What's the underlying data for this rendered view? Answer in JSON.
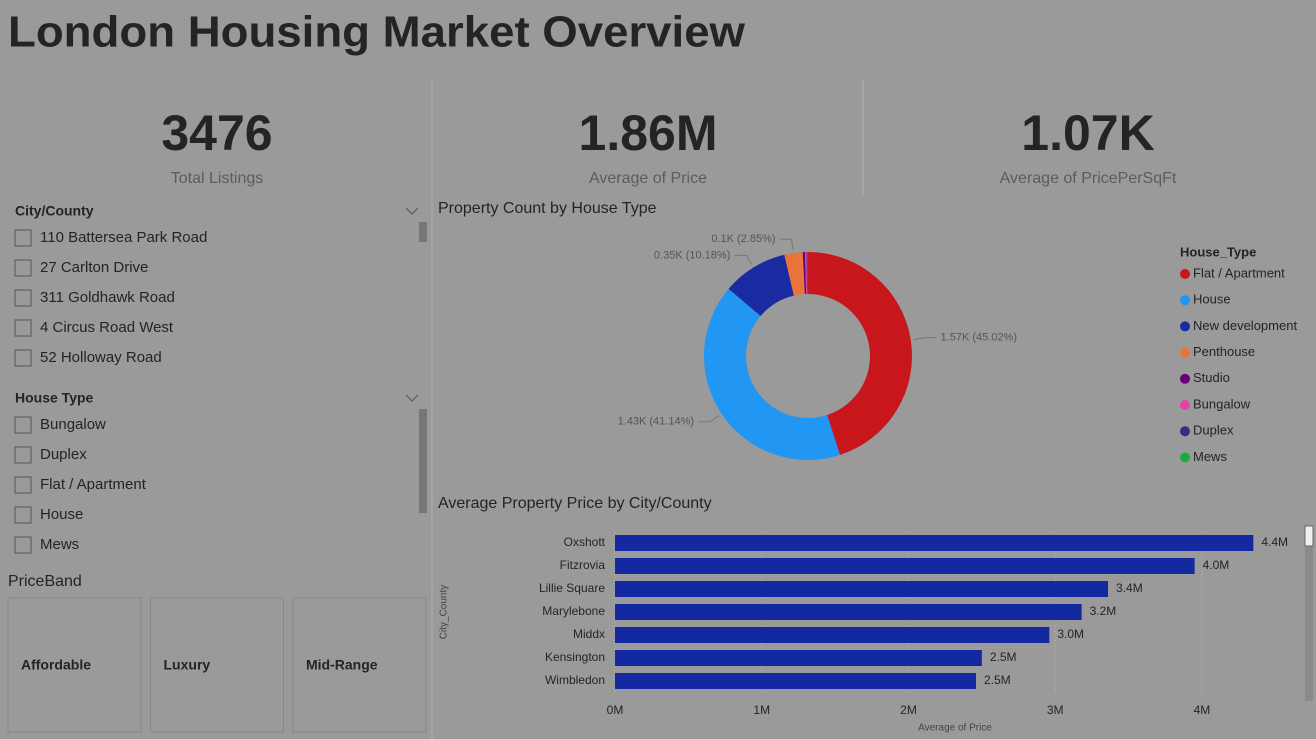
{
  "title": "London Housing Market Overview",
  "kpis": [
    {
      "value": "3476",
      "label": "Total Listings"
    },
    {
      "value": "1.86M",
      "label": "Average of Price"
    },
    {
      "value": "1.07K",
      "label": "Average of PricePerSqFt"
    }
  ],
  "slicers": [
    {
      "title": "City/County",
      "items": [
        "110 Battersea Park Road",
        "27 Carlton Drive",
        "311 Goldhawk Road",
        "4 Circus Road West",
        "52 Holloway Road"
      ]
    },
    {
      "title": "House Type",
      "items": [
        "Bungalow",
        "Duplex",
        "Flat / Apartment",
        "House",
        "Mews"
      ]
    }
  ],
  "price_band": {
    "title": "PriceBand",
    "items": [
      "Affordable",
      "Luxury",
      "Mid-Range"
    ]
  },
  "chart_data": [
    {
      "type": "donut",
      "title": "Property Count by House Type",
      "legend_title": "House_Type",
      "legend": "right",
      "series": [
        {
          "name": "Flat / Apartment",
          "color": "#c8161d"
        },
        {
          "name": "House",
          "color": "#2196f3"
        },
        {
          "name": "New development",
          "color": "#1a2aa0"
        },
        {
          "name": "Penthouse",
          "color": "#e8743b"
        },
        {
          "name": "Studio",
          "color": "#6b007b"
        },
        {
          "name": "Bungalow",
          "color": "#e044a7"
        },
        {
          "name": "Duplex",
          "color": "#3b2a80"
        },
        {
          "name": "Mews",
          "color": "#1aab40"
        }
      ],
      "values": [
        1565,
        1430,
        354,
        99,
        12,
        8,
        5,
        3
      ],
      "value_labels": [
        "1.57K (45.02%)",
        "1.43K (41.14%)",
        "0.35K (10.18%)",
        "0.1K (2.85%)",
        null,
        null,
        null,
        null
      ]
    },
    {
      "type": "bar",
      "title": "Average Property Price by City/County",
      "color": "#1428a0",
      "categories": [
        "Oxshott",
        "Fitzrovia",
        "Lillie Square",
        "Marylebone",
        "Middx",
        "Kensington",
        "Wimbledon"
      ],
      "values": [
        4.35,
        3.95,
        3.36,
        3.18,
        2.96,
        2.5,
        2.46
      ],
      "value_labels": [
        "4.4M",
        "4.0M",
        "3.4M",
        "3.2M",
        "3.0M",
        "2.5M",
        "2.5M"
      ],
      "xlim": [
        0,
        4.6
      ],
      "xticks": [
        {
          "value": 0,
          "label": "0M"
        },
        {
          "value": 1,
          "label": "1M"
        },
        {
          "value": 2,
          "label": "2M"
        },
        {
          "value": 3,
          "label": "3M"
        },
        {
          "value": 4,
          "label": "4M"
        }
      ],
      "x_label": "Average of Price",
      "y_label": "City_County",
      "grid": true
    }
  ]
}
